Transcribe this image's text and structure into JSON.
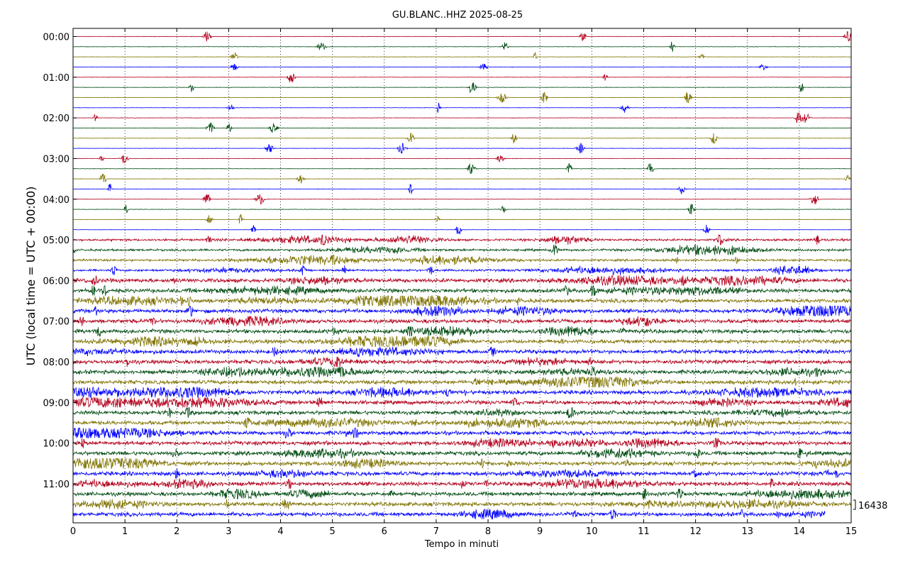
{
  "chart_data": {
    "type": "line",
    "title": "GU.BLANC..HHZ 2025-08-25",
    "xlabel": "Tempo in minuti",
    "ylabel": "UTC (local time = UTC + 00:00)",
    "xlim": [
      0,
      15
    ],
    "x_ticks": [
      "0",
      "1",
      "2",
      "3",
      "4",
      "5",
      "6",
      "7",
      "8",
      "9",
      "10",
      "11",
      "12",
      "13",
      "14",
      "15"
    ],
    "hour_labels": [
      "00:00",
      "01:00",
      "02:00",
      "03:00",
      "04:00",
      "05:00",
      "06:00",
      "07:00",
      "08:00",
      "09:00",
      "10:00",
      "11:00"
    ],
    "traces_per_hour": 4,
    "trace_count": 48,
    "trace_minutes": 15,
    "last_trace_end_minute": 14.5,
    "trace_colors": [
      "#b2001c",
      "#004c12",
      "#7f7300",
      "#0000ff"
    ],
    "grid": "vertical dotted at each minute",
    "scale_label": "16438",
    "scale_label_placement": "right, next to bottom traces"
  }
}
